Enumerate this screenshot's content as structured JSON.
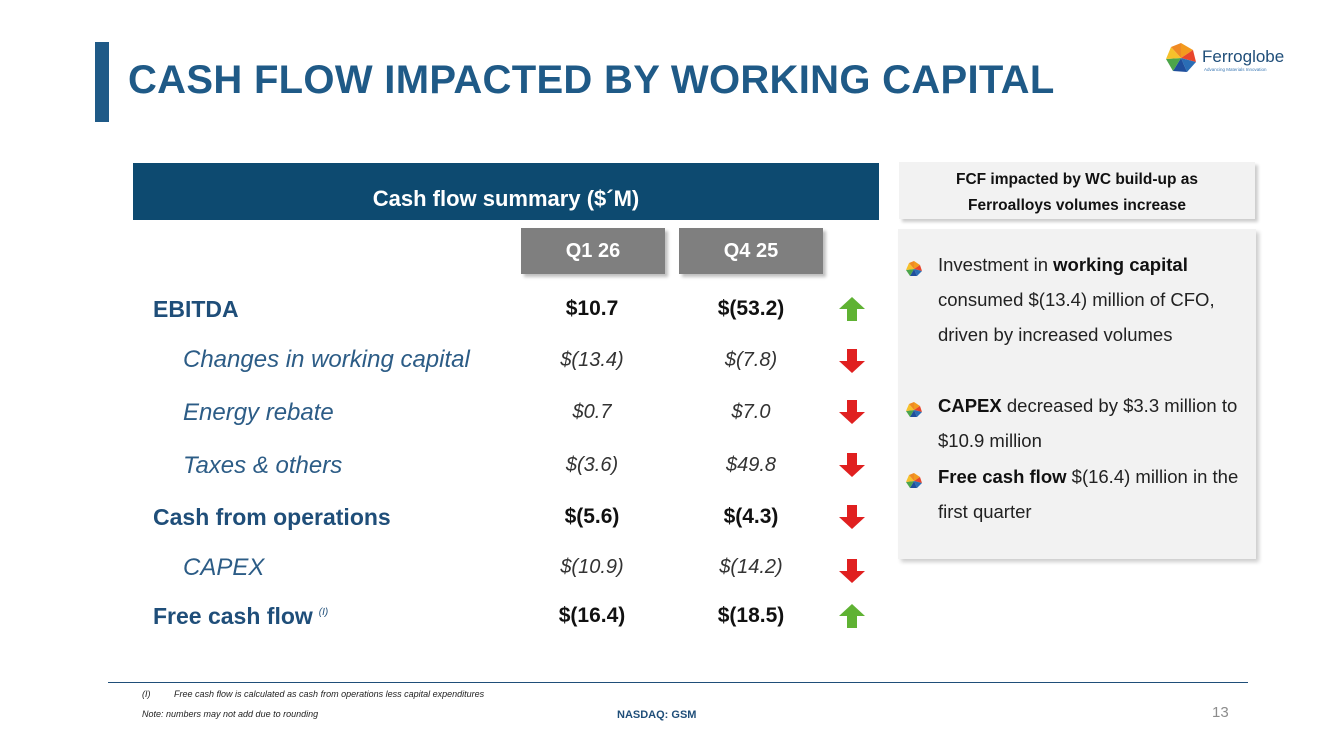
{
  "slide": {
    "title": "CASH FLOW IMPACTED BY WORKING CAPITAL",
    "page_number": "13"
  },
  "logo": {
    "name": "Ferroglobe",
    "tagline": "Advancing Materials Innovation"
  },
  "summary": {
    "header": "Cash flow summary ($´M)",
    "columns": [
      "Q1 26",
      "Q4 25"
    ],
    "rows": [
      {
        "label": "EBITDA",
        "note": "",
        "q1": "$10.7",
        "q4": "$(53.2)",
        "trend": "up"
      },
      {
        "label": "Changes in working capital",
        "note": "",
        "q1": "$(13.4)",
        "q4": "$(7.8)",
        "trend": "down"
      },
      {
        "label": "Energy rebate",
        "note": "",
        "q1": "$0.7",
        "q4": "$7.0",
        "trend": "down"
      },
      {
        "label": "Taxes & others",
        "note": "",
        "q1": "$(3.6)",
        "q4": "$49.8",
        "trend": "down"
      },
      {
        "label": "Cash from operations",
        "note": "",
        "q1": "$(5.6)",
        "q4": "$(4.3)",
        "trend": "down"
      },
      {
        "label": "CAPEX",
        "note": "",
        "q1": "$(10.9)",
        "q4": "$(14.2)",
        "trend": "down"
      },
      {
        "label": "Free cash flow",
        "note": "(I)",
        "q1": "$(16.4)",
        "q4": "$(18.5)",
        "trend": "up"
      }
    ]
  },
  "sidebar": {
    "header_line1": "FCF impacted by WC build-up as",
    "header_line2": "Ferroalloys volumes increase",
    "bullets": [
      {
        "pre": "Investment in ",
        "bold": "working capital",
        "post": " consumed $(13.4) million of CFO, driven by increased volumes"
      },
      {
        "pre": "",
        "bold": "CAPEX",
        "post": " decreased by $3.3 million to $10.9 million"
      },
      {
        "pre": "",
        "bold": "Free cash flow",
        "post": " $(16.4) million in the first quarter"
      }
    ]
  },
  "footer": {
    "footnote_marker": "(I)",
    "footnote_text": "Free cash flow is calculated as cash from operations less capital expenditures",
    "note": "Note: numbers may not add due to rounding",
    "ticker": "NASDAQ: GSM"
  },
  "colors": {
    "primary_blue": "#1f5a87",
    "header_navy": "#0d4a70",
    "column_gray": "#7f7f7f",
    "arrow_up_green": "#5fb233",
    "arrow_down_red": "#e02020"
  },
  "icons": {
    "up": "arrow-up-icon",
    "down": "arrow-down-icon",
    "bullet": "globe-bullet-icon"
  }
}
